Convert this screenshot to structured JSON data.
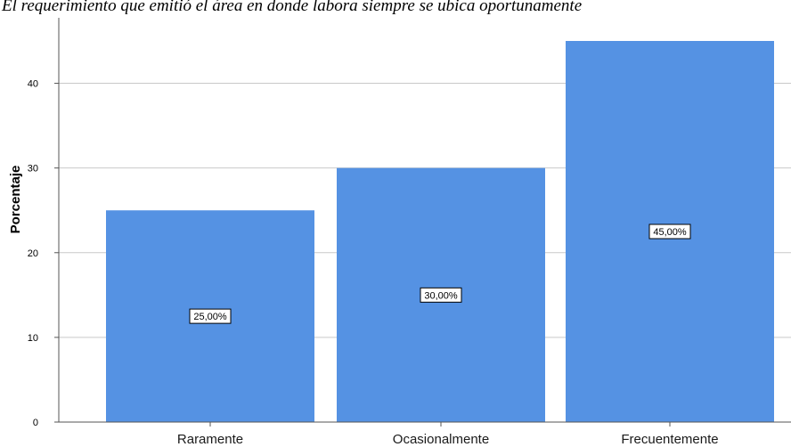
{
  "chart_data": {
    "type": "bar",
    "title": "El requerimiento que emitió el área en donde labora siempre se ubica oportunamente",
    "xlabel": "",
    "ylabel": "Porcentaje",
    "categories": [
      "Raramente",
      "Ocasionalmente",
      "Frecuentemente"
    ],
    "values": [
      25,
      30,
      45
    ],
    "data_labels": [
      "25,00%",
      "30,00%",
      "45,00%"
    ],
    "yticks": [
      0,
      10,
      20,
      30,
      40
    ],
    "ylim": [
      0,
      46.5
    ],
    "grid": true,
    "legend": "none",
    "colors": {
      "bar": "#5592e3",
      "grid": "#c9c9c9",
      "axis": "#555555"
    }
  }
}
